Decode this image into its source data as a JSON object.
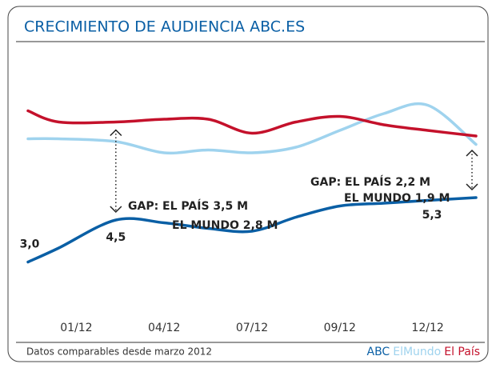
{
  "chart_data": {
    "type": "line",
    "title": "CRECIMIENTO DE AUDIENCIA ABC.ES",
    "footnote": "Datos comparables desde marzo 2012",
    "x": [
      0.45,
      0.8,
      1.45,
      2,
      2.5,
      3,
      3.5,
      4,
      4.5,
      5,
      5.55
    ],
    "xlim": [
      0.45,
      5.55
    ],
    "xticks": [
      {
        "value": 1,
        "label": "01/12"
      },
      {
        "value": 2,
        "label": "04/12"
      },
      {
        "value": 3,
        "label": "07/12"
      },
      {
        "value": 4,
        "label": "09/12"
      },
      {
        "value": 5,
        "label": "12/12"
      }
    ],
    "ylim": [
      1.5,
      9.5
    ],
    "series": [
      {
        "name": "ABC",
        "color": "#0a5fa5",
        "values": [
          3.0,
          3.5,
          4.5,
          4.4,
          4.2,
          4.1,
          4.6,
          5.0,
          5.1,
          5.2,
          5.3
        ],
        "value_labels": [
          "3,0",
          null,
          "4,5",
          null,
          null,
          null,
          null,
          null,
          null,
          null,
          "5,3"
        ]
      },
      {
        "name": "ElMundo",
        "color": "#9fd3ee",
        "values": [
          7.4,
          7.4,
          7.3,
          6.9,
          7.0,
          6.9,
          7.1,
          7.7,
          8.3,
          8.6,
          7.2
        ]
      },
      {
        "name": "El País",
        "color": "#c4112b",
        "values": [
          8.4,
          8.0,
          8.0,
          8.1,
          8.1,
          7.6,
          8.0,
          8.2,
          7.9,
          7.7,
          7.5
        ]
      }
    ],
    "annotations": [
      "GAP: EL PAÍS 3,5 M",
      "EL MUNDO 2,8 M",
      "GAP: EL PAÍS 2,2 M",
      "EL MUNDO 1,9 M"
    ]
  }
}
